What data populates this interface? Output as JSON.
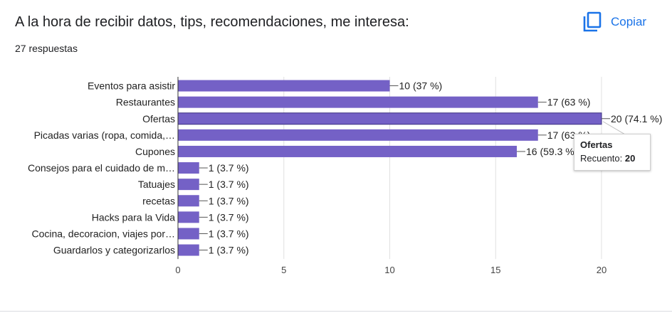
{
  "header": {
    "title": "A la hora de recibir datos, tips, recomendaciones, me interesa:",
    "responses": "27 respuestas",
    "copy_label": "Copiar",
    "copy_icon": "copy-icon"
  },
  "colors": {
    "bar": "#7461c6",
    "accent": "#1a73e8",
    "grid": "#e0e0e0"
  },
  "tooltip": {
    "title": "Ofertas",
    "key": "Recuento:",
    "value": "20"
  },
  "chart_data": {
    "type": "bar",
    "orientation": "horizontal",
    "categories": [
      "Eventos para asistir",
      "Restaurantes",
      "Ofertas",
      "Picadas varias (ropa, comida,…",
      "Cupones",
      "Consejos para el cuidado de m…",
      "Tatuajes",
      "recetas",
      "Hacks para la Vida",
      "Cocina, decoracion, viajes por…",
      "Guardarlos y categorizarlos"
    ],
    "values": [
      10,
      17,
      20,
      17,
      16,
      1,
      1,
      1,
      1,
      1,
      1
    ],
    "data_labels": [
      "10 (37 %)",
      "17 (63 %)",
      "20 (74.1 %)",
      "17 (63 %)",
      "16 (59.3 %)",
      "1 (3.7 %)",
      "1 (3.7 %)",
      "1 (3.7 %)",
      "1 (3.7 %)",
      "1 (3.7 %)",
      "1 (3.7 %)"
    ],
    "xlim": [
      0,
      20
    ],
    "xticks": [
      0,
      5,
      10,
      15,
      20
    ],
    "grid": true,
    "highlighted": "Ofertas"
  }
}
